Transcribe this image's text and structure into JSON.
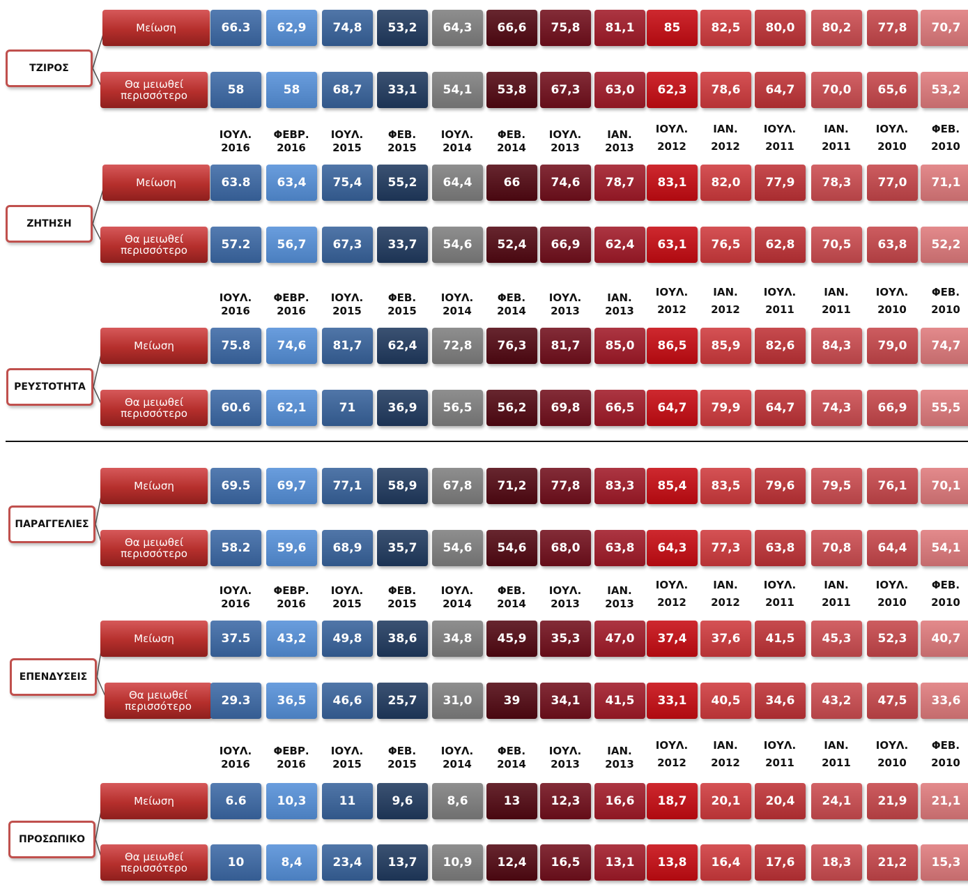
{
  "chart_data": {
    "type": "table",
    "row_labels": [
      "Μείωση",
      "Θα μειωθεί περισσότερο"
    ],
    "periods": [
      {
        "month": "ΙΟΥΛ.",
        "year": "2016",
        "color": "#3c69a6"
      },
      {
        "month": "ΦΕΒΡ.",
        "year": "2016",
        "color": "#5590d9"
      },
      {
        "month": "ΙΟΥΛ.",
        "year": "2015",
        "color": "#38639c"
      },
      {
        "month": "ΦΕΒ.",
        "year": "2015",
        "color": "#203a5f"
      },
      {
        "month": "ΙΟΥΛ.",
        "year": "2014",
        "color": "#7f7f7f"
      },
      {
        "month": "ΦΕΒ.",
        "year": "2014",
        "color": "#520812"
      },
      {
        "month": "ΙΟΥΛ.",
        "year": "2013",
        "color": "#720f1c"
      },
      {
        "month": "ΙΑΝ.",
        "year": "2013",
        "color": "#a11a28"
      },
      {
        "month": "ΙΟΥΛ.",
        "year": "2012",
        "color": "#c70b12"
      },
      {
        "month": "ΙΑΝ.",
        "year": "2012",
        "color": "#cf3a3d"
      },
      {
        "month": "ΙΟΥΛ.",
        "year": "2011",
        "color": "#bf3236"
      },
      {
        "month": "ΙΑΝ.",
        "year": "2011",
        "color": "#cc4c50"
      },
      {
        "month": "ΙΟΥΛ.",
        "year": "2010",
        "color": "#c6464a"
      },
      {
        "month": "ΦΕΒ.",
        "year": "2010",
        "color": "#df7a7c"
      }
    ],
    "groups": [
      {
        "name": "ΤΖΙΡΟΣ",
        "series": [
          {
            "name": "Μείωση",
            "values": [
              "66.3",
              "62,9",
              "74,8",
              "53,2",
              "64,3",
              "66,6",
              "75,8",
              "81,1",
              "85",
              "82,5",
              "80,0",
              "80,2",
              "77,8",
              "70,7"
            ]
          },
          {
            "name": "Θα μειωθεί περισσότερο",
            "values": [
              "58",
              "58",
              "68,7",
              "33,1",
              "54,1",
              "53,8",
              "67,3",
              "63,0",
              "62,3",
              "78,6",
              "64,7",
              "70,0",
              "65,6",
              "53,2"
            ]
          }
        ]
      },
      {
        "name": "ΖΗΤΗΣΗ",
        "series": [
          {
            "name": "Μείωση",
            "values": [
              "63.8",
              "63,4",
              "75,4",
              "55,2",
              "64,4",
              "66",
              "74,6",
              "78,7",
              "83,1",
              "82,0",
              "77,9",
              "78,3",
              "77,0",
              "71,1"
            ]
          },
          {
            "name": "Θα μειωθεί περισσότερο",
            "values": [
              "57.2",
              "56,7",
              "67,3",
              "33,7",
              "54,6",
              "52,4",
              "66,9",
              "62,4",
              "63,1",
              "76,5",
              "62,8",
              "70,5",
              "63,8",
              "52,2"
            ]
          }
        ]
      },
      {
        "name": "ΡΕΥΣΤΟΤΗΤΑ",
        "series": [
          {
            "name": "Μείωση",
            "values": [
              "75.8",
              "74,6",
              "81,7",
              "62,4",
              "72,8",
              "76,3",
              "81,7",
              "85,0",
              "86,5",
              "85,9",
              "82,6",
              "84,3",
              "79,0",
              "74,7"
            ]
          },
          {
            "name": "Θα μειωθεί περισσότερο",
            "values": [
              "60.6",
              "62,1",
              "71",
              "36,9",
              "56,5",
              "56,2",
              "69,8",
              "66,5",
              "64,7",
              "79,9",
              "64,7",
              "74,3",
              "66,9",
              "55,5"
            ]
          }
        ]
      },
      {
        "name": "ΠΑΡΑΓΓΕΛΙΕΣ",
        "series": [
          {
            "name": "Μείωση",
            "values": [
              "69.5",
              "69,7",
              "77,1",
              "58,9",
              "67,8",
              "71,2",
              "77,8",
              "83,3",
              "85,4",
              "83,5",
              "79,6",
              "79,5",
              "76,1",
              "70,1"
            ]
          },
          {
            "name": "Θα μειωθεί περισσότερο",
            "values": [
              "58.2",
              "59,6",
              "68,9",
              "35,7",
              "54,6",
              "54,6",
              "68,0",
              "63,8",
              "64,3",
              "77,3",
              "63,8",
              "70,8",
              "64,4",
              "54,1"
            ]
          }
        ]
      },
      {
        "name": "ΕΠΕΝΔΥΣΕΙΣ",
        "series": [
          {
            "name": "Μείωση",
            "values": [
              "37.5",
              "43,2",
              "49,8",
              "38,6",
              "34,8",
              "45,9",
              "35,3",
              "47,0",
              "37,4",
              "37,6",
              "41,5",
              "45,3",
              "52,3",
              "40,7"
            ]
          },
          {
            "name": "Θα μειωθεί περισσότερο",
            "values": [
              "29.3",
              "36,5",
              "46,6",
              "25,7",
              "31,0",
              "39",
              "34,1",
              "41,5",
              "33,1",
              "40,5",
              "34,6",
              "43,2",
              "47,5",
              "33,6"
            ]
          }
        ]
      },
      {
        "name": "ΠΡΟΣΩΠΙΚΟ",
        "series": [
          {
            "name": "Μείωση",
            "values": [
              "6.6",
              "10,3",
              "11",
              "9,6",
              "8,6",
              "13",
              "12,3",
              "16,6",
              "18,7",
              "20,1",
              "20,4",
              "24,1",
              "21,9",
              "21,1"
            ]
          },
          {
            "name": "Θα μειωθεί περισσότερο",
            "values": [
              "10",
              "8,4",
              "23,4",
              "13,7",
              "10,9",
              "12,4",
              "16,5",
              "13,1",
              "13,8",
              "16,4",
              "17,6",
              "18,3",
              "21,2",
              "15,3"
            ]
          }
        ]
      }
    ]
  }
}
